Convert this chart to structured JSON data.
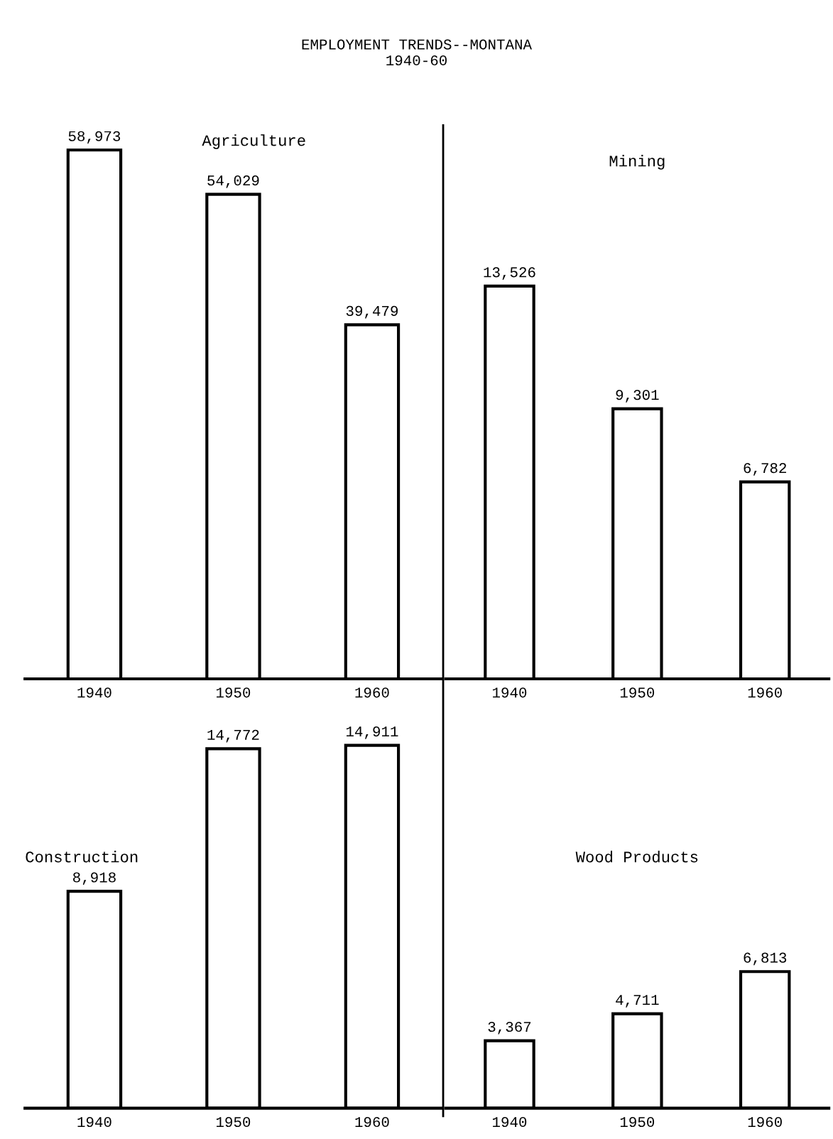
{
  "chart_data": [
    {
      "type": "bar",
      "title": "Agriculture",
      "annotations": [
        "EMPLOYMENT TRENDS--MONTANA\n1940-60"
      ],
      "categories": [
        "1940",
        "1950",
        "1960"
      ],
      "values": [
        58973,
        54029,
        39479
      ],
      "value_labels": [
        "58,973",
        "54,029",
        "39,479"
      ],
      "color": "#ffffff",
      "tick_labels": "x",
      "grid": false
    },
    {
      "type": "bar",
      "title": "Mining",
      "categories": [
        "1940",
        "1950",
        "1960"
      ],
      "values": [
        13526,
        9301,
        6782
      ],
      "value_labels": [
        "13,526",
        "9,301",
        "6,782"
      ],
      "color": "#ffffff",
      "tick_labels": "x",
      "grid": false
    },
    {
      "type": "bar",
      "title": "Construction",
      "categories": [
        "1940",
        "1950",
        "1960"
      ],
      "values": [
        8918,
        14772,
        14911
      ],
      "value_labels": [
        "8,918",
        "14,772",
        "14,911"
      ],
      "color": "#ffffff",
      "tick_labels": "x",
      "grid": false
    },
    {
      "type": "bar",
      "title": "Wood Products",
      "categories": [
        "1940",
        "1950",
        "1960"
      ],
      "values": [
        3367,
        4711,
        6813
      ],
      "value_labels": [
        "3,367",
        "4,711",
        "6,813"
      ],
      "color": "#ffffff",
      "tick_labels": "x",
      "grid": false
    }
  ]
}
